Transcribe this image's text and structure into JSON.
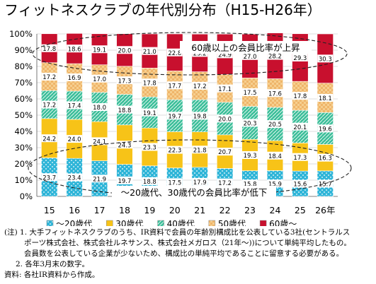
{
  "title": "フィットネスクラブの年代別分布（H15-H26年）",
  "chart_data": {
    "type": "bar",
    "stacked": true,
    "percent": true,
    "categories": [
      "15",
      "16",
      "17",
      "18",
      "19",
      "20",
      "21",
      "22",
      "23",
      "24",
      "25",
      "26年"
    ],
    "ylim": [
      0,
      100
    ],
    "yticks": [
      "0%",
      "10%",
      "20%",
      "30%",
      "40%",
      "50%",
      "60%",
      "70%",
      "80%",
      "90%",
      "100%"
    ],
    "grid": true,
    "legend_position": "bottom",
    "series": [
      {
        "name": "～20歳代",
        "color": "#2fb5d8",
        "pattern": "dots",
        "values": [
          23.7,
          23.4,
          21.9,
          19.7,
          18.8,
          17.5,
          17.9,
          17.2,
          15.8,
          15.9,
          15.6,
          15.7
        ]
      },
      {
        "name": "30歳代",
        "color": "#f7c318",
        "pattern": "none",
        "values": [
          24.2,
          24.0,
          24.1,
          24.3,
          23.3,
          22.3,
          21.8,
          20.7,
          19.3,
          18.4,
          17.3,
          16.3
        ]
      },
      {
        "name": "40歳代",
        "color": "#3dbf9a",
        "pattern": "hatch",
        "values": [
          17.2,
          17.4,
          18.0,
          18.8,
          19.1,
          19.7,
          19.8,
          20.0,
          20.3,
          20.5,
          20.1,
          19.6
        ]
      },
      {
        "name": "50歳代",
        "color": "#f6cf8f",
        "pattern": "checker",
        "values": [
          17.2,
          16.9,
          17.0,
          17.3,
          17.8,
          17.7,
          17.2,
          17.1,
          17.5,
          17.6,
          17.8,
          18.1
        ]
      },
      {
        "name": "60歳～",
        "color": "#c8102e",
        "pattern": "none",
        "values": [
          17.8,
          18.6,
          19.1,
          20.0,
          21.0,
          22.8,
          23.2,
          24.9,
          27.0,
          28.2,
          29.3,
          30.3
        ]
      }
    ],
    "annotations": [
      "60歳以上の会員比率が上昇",
      "～20歳代、30歳代の会員比率が低下"
    ]
  },
  "notes": {
    "line1": "(注) 1. 大手フィットネスクラブのうち、IR資料で会員の年齢別構成比を公表している3社(セントラルス",
    "line2": "ポーツ株式会社、株式会社ルネサンス、株式会社メガロス（21年～))について単純平均したもの。",
    "line3": "会員数を公表している企業が少ないため、構成比の単純平均であることに留意する必要がある。",
    "line4": "2. 各年3月末の数字。",
    "line5": "資料: 各社IR資料から作成。"
  }
}
